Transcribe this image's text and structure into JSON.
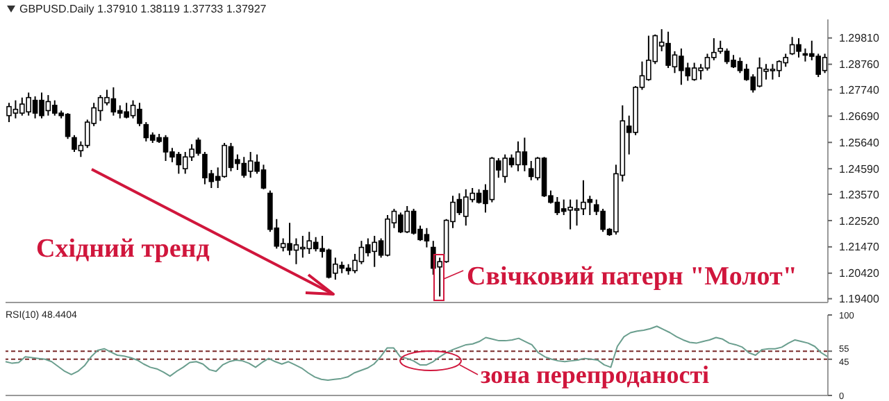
{
  "chart_data": [
    {
      "type": "candlestick",
      "title": "GBPUSD.Daily 1.37910 1.38119 1.37733 1.37927",
      "categories": [
        null,
        null,
        null,
        null,
        null,
        null,
        null,
        null,
        null,
        null,
        null,
        null,
        null,
        null,
        null,
        null,
        null,
        null,
        null,
        null,
        null,
        null,
        null,
        null,
        null,
        null,
        null,
        null,
        null,
        null,
        null,
        null,
        null,
        null,
        null,
        null,
        null,
        null,
        null,
        null,
        null,
        null,
        null,
        null,
        null,
        null,
        null,
        null,
        null,
        null,
        null,
        null,
        null,
        null,
        null,
        null,
        null,
        null,
        null,
        null,
        null,
        null,
        null,
        null,
        null,
        null,
        null,
        null,
        null,
        null,
        null,
        null,
        null,
        null,
        null,
        null,
        null,
        null,
        null,
        null,
        null,
        null,
        null,
        null,
        null,
        null,
        null,
        null,
        null,
        null,
        null,
        null,
        null,
        null,
        null,
        null,
        null,
        null,
        null,
        null,
        null,
        null,
        null,
        null,
        null,
        null,
        null,
        null,
        null,
        null,
        null,
        null,
        null,
        null,
        null,
        null,
        null,
        null,
        null,
        null,
        null,
        null,
        null,
        null,
        null,
        null
      ],
      "ohlc": [
        [
          1.2671,
          1.2722,
          1.2645,
          1.2707
        ],
        [
          1.2681,
          1.2732,
          1.266,
          1.2696
        ],
        [
          1.2681,
          1.2743,
          1.2671,
          1.2717
        ],
        [
          1.2686,
          1.2763,
          1.2671,
          1.2743
        ],
        [
          1.2732,
          1.2748,
          1.266,
          1.2681
        ],
        [
          1.2732,
          1.2763,
          1.266,
          1.2671
        ],
        [
          1.2691,
          1.2753,
          1.2671,
          1.2727
        ],
        [
          1.2712,
          1.2732,
          1.2671,
          1.2681
        ],
        [
          1.2681,
          1.2691,
          1.266,
          1.2671
        ],
        [
          1.2676,
          1.2681,
          1.2578,
          1.2588
        ],
        [
          1.2583,
          1.2593,
          1.2526,
          1.2537
        ],
        [
          1.2531,
          1.2568,
          1.2506,
          1.2552
        ],
        [
          1.2552,
          1.2655,
          1.2542,
          1.2645
        ],
        [
          1.264,
          1.2722,
          1.2629,
          1.2702
        ],
        [
          1.2691,
          1.2753,
          1.265,
          1.2743
        ],
        [
          1.2722,
          1.2774,
          1.2712,
          1.2743
        ],
        [
          1.2738,
          1.2784,
          1.2671,
          1.2686
        ],
        [
          1.2691,
          1.2712,
          1.266,
          1.2681
        ],
        [
          1.2686,
          1.2722,
          1.266,
          1.2665
        ],
        [
          1.2671,
          1.2732,
          1.266,
          1.2712
        ],
        [
          1.2696,
          1.2722,
          1.2629,
          1.264
        ],
        [
          1.2635,
          1.2645,
          1.2568,
          1.2583
        ],
        [
          1.2593,
          1.2604,
          1.2562,
          1.2573
        ],
        [
          1.2583,
          1.2598,
          1.2562,
          1.2568
        ],
        [
          1.2583,
          1.2593,
          1.249,
          1.2526
        ],
        [
          1.2526,
          1.2542,
          1.2485,
          1.2506
        ],
        [
          1.2516,
          1.2526,
          1.2439,
          1.2475
        ],
        [
          1.2459,
          1.2526,
          1.2439,
          1.2506
        ],
        [
          1.2506,
          1.2557,
          1.249,
          1.2537
        ],
        [
          1.2573,
          1.2583,
          1.2511,
          1.2521
        ],
        [
          1.2516,
          1.2526,
          1.2397,
          1.2423
        ],
        [
          1.2439,
          1.2454,
          1.2382,
          1.2408
        ],
        [
          1.2428,
          1.2464,
          1.2382,
          1.2413
        ],
        [
          1.2428,
          1.2562,
          1.2423,
          1.2552
        ],
        [
          1.2547,
          1.2562,
          1.2449,
          1.2464
        ],
        [
          1.2495,
          1.2516,
          1.2454,
          1.248
        ],
        [
          1.248,
          1.2506,
          1.2423,
          1.2433
        ],
        [
          1.2449,
          1.2526,
          1.2423,
          1.249
        ],
        [
          1.2485,
          1.2516,
          1.2439,
          1.2449
        ],
        [
          1.2454,
          1.2475,
          1.2377,
          1.2382
        ],
        [
          1.2361,
          1.2372,
          1.2207,
          1.2217
        ],
        [
          1.2222,
          1.2258,
          1.214,
          1.215
        ],
        [
          1.2145,
          1.2181,
          1.2129,
          1.216
        ],
        [
          1.216,
          1.2243,
          1.2114,
          1.2134
        ],
        [
          1.2134,
          1.2181,
          1.2078,
          1.2155
        ],
        [
          1.214,
          1.2191,
          1.2104,
          1.2145
        ],
        [
          1.214,
          1.2207,
          1.2119,
          1.2171
        ],
        [
          1.2165,
          1.2186,
          1.2129,
          1.214
        ],
        [
          1.214,
          1.2191,
          1.2104,
          1.2129
        ],
        [
          1.2134,
          1.214,
          1.2021,
          1.2026
        ],
        [
          1.2042,
          1.2104,
          1.2016,
          1.2078
        ],
        [
          1.2073,
          1.2088,
          1.2042,
          1.2062
        ],
        [
          1.2062,
          1.2078,
          1.2036,
          1.2052
        ],
        [
          1.2052,
          1.2119,
          1.2042,
          1.2093
        ],
        [
          1.2088,
          1.2171,
          1.2078,
          1.2145
        ],
        [
          1.2155,
          1.2181,
          1.2109,
          1.2124
        ],
        [
          1.2129,
          1.2191,
          1.2067,
          1.2165
        ],
        [
          1.2171,
          1.2181,
          1.2104,
          1.2114
        ],
        [
          1.2114,
          1.2274,
          1.2109,
          1.2258
        ],
        [
          1.2243,
          1.2299,
          1.2222,
          1.2289
        ],
        [
          1.2274,
          1.2284,
          1.2202,
          1.2207
        ],
        [
          1.2207,
          1.231,
          1.2202,
          1.2289
        ],
        [
          1.2289,
          1.2299,
          1.2196,
          1.2202
        ],
        [
          1.2217,
          1.2232,
          1.2171,
          1.2176
        ],
        [
          1.2196,
          1.2222,
          1.2145,
          1.2171
        ],
        [
          1.2145,
          1.2171,
          1.2036,
          1.2062
        ],
        [
          1.2067,
          1.2104,
          1.1949,
          1.2088
        ],
        [
          1.2088,
          1.2258,
          1.2083,
          1.2253
        ],
        [
          1.2248,
          1.2351,
          1.2222,
          1.2325
        ],
        [
          1.2336,
          1.2361,
          1.2274,
          1.2284
        ],
        [
          1.2269,
          1.2377,
          1.2232,
          1.2346
        ],
        [
          1.2336,
          1.2382,
          1.2325,
          1.2361
        ],
        [
          1.2361,
          1.2377,
          1.232,
          1.2325
        ],
        [
          1.2372,
          1.2397,
          1.2284,
          1.232
        ],
        [
          1.2336,
          1.2506,
          1.2325,
          1.2501
        ],
        [
          1.249,
          1.2501,
          1.2423,
          1.2454
        ],
        [
          1.2428,
          1.2516,
          1.2403,
          1.2501
        ],
        [
          1.2501,
          1.2516,
          1.2464,
          1.2475
        ],
        [
          1.2475,
          1.2568,
          1.2449,
          1.2526
        ],
        [
          1.2526,
          1.2583,
          1.2449,
          1.2475
        ],
        [
          1.2459,
          1.249,
          1.2413,
          1.2428
        ],
        [
          1.2423,
          1.2506,
          1.2413,
          1.2501
        ],
        [
          1.2501,
          1.2506,
          1.2346,
          1.2351
        ],
        [
          1.2351,
          1.2372,
          1.232,
          1.2325
        ],
        [
          1.2325,
          1.2346,
          1.2274,
          1.2284
        ],
        [
          1.2299,
          1.2336,
          1.2274,
          1.2289
        ],
        [
          1.2294,
          1.2336,
          1.2217,
          1.2305
        ],
        [
          1.2299,
          1.2336,
          1.2232,
          1.2299
        ],
        [
          1.2299,
          1.2413,
          1.2274,
          1.2325
        ],
        [
          1.2336,
          1.2351,
          1.2274,
          1.2325
        ],
        [
          1.2315,
          1.2336,
          1.2274,
          1.2289
        ],
        [
          1.2289,
          1.2299,
          1.2207,
          1.2217
        ],
        [
          1.2217,
          1.2222,
          1.2191,
          1.2196
        ],
        [
          1.2207,
          1.2475,
          1.2196,
          1.2439
        ],
        [
          1.2433,
          1.2712,
          1.2408,
          1.265
        ],
        [
          1.2629,
          1.2671,
          1.2516,
          1.2604
        ],
        [
          1.2604,
          1.2789,
          1.2593,
          1.2784
        ],
        [
          1.2784,
          1.2887,
          1.2774,
          1.283
        ],
        [
          1.2815,
          1.299,
          1.281,
          1.2892
        ],
        [
          1.2887,
          1.2995,
          1.2877,
          1.299
        ],
        [
          1.2949,
          1.3016,
          1.2928,
          1.2964
        ],
        [
          1.2959,
          1.3006,
          1.2861,
          1.2872
        ],
        [
          1.2866,
          1.2928,
          1.2841,
          1.2913
        ],
        [
          1.2908,
          1.2939,
          1.2794,
          1.2851
        ],
        [
          1.2861,
          1.2882,
          1.281,
          1.283
        ],
        [
          1.2815,
          1.2882,
          1.281,
          1.2861
        ],
        [
          1.2851,
          1.2877,
          1.2815,
          1.2861
        ],
        [
          1.2861,
          1.2918,
          1.2851,
          1.2903
        ],
        [
          1.2903,
          1.298,
          1.2892,
          1.2923
        ],
        [
          1.2928,
          1.297,
          1.2918,
          1.2939
        ],
        [
          1.2928,
          1.2939,
          1.2877,
          1.2887
        ],
        [
          1.2892,
          1.2913,
          1.2861,
          1.2866
        ],
        [
          1.2887,
          1.2903,
          1.2841,
          1.2851
        ],
        [
          1.2856,
          1.2877,
          1.281,
          1.2815
        ],
        [
          1.2825,
          1.2836,
          1.2763,
          1.2774
        ],
        [
          1.2789,
          1.2903,
          1.2784,
          1.2861
        ],
        [
          1.2848,
          1.2877,
          1.2815,
          1.2856
        ],
        [
          1.2851,
          1.2877,
          1.2815,
          1.2856
        ],
        [
          1.2851,
          1.2892,
          1.2825,
          1.2887
        ],
        [
          1.2882,
          1.2918,
          1.2866,
          1.2903
        ],
        [
          1.2918,
          1.2985,
          1.2913,
          1.2954
        ],
        [
          1.2954,
          1.298,
          1.2903,
          1.2928
        ],
        [
          1.2918,
          1.2939,
          1.2887,
          1.2913
        ],
        [
          1.2918,
          1.297,
          1.2892,
          1.2908
        ],
        [
          1.2908,
          1.2918,
          1.2825,
          1.2836
        ],
        [
          1.2851,
          1.2918,
          1.2841,
          1.2903
        ]
      ],
      "ylim": [
        1.1925,
        1.3055
      ],
      "yticks": [
        {
          "value": 1.194,
          "label": "1.19400"
        },
        {
          "value": 1.2042,
          "label": "1.20420"
        },
        {
          "value": 1.2147,
          "label": "1.21470"
        },
        {
          "value": 1.2252,
          "label": "1.22520"
        },
        {
          "value": 1.2357,
          "label": "1.23570"
        },
        {
          "value": 1.2459,
          "label": "1.24590"
        },
        {
          "value": 1.2564,
          "label": "1.25640"
        },
        {
          "value": 1.2669,
          "label": "1.26690"
        },
        {
          "value": 1.2774,
          "label": "1.27740"
        },
        {
          "value": 1.2876,
          "label": "1.28760"
        },
        {
          "value": 1.2981,
          "label": "1.29810"
        }
      ],
      "tick_labels": "y",
      "annotations": [
        "Східний тренд",
        "Свічковий патерн \"Молот\""
      ]
    },
    {
      "type": "line",
      "title": "RSI(10) 48.4404",
      "categories": [
        null,
        null,
        null,
        null,
        null,
        null,
        null,
        null,
        null,
        null,
        null,
        null,
        null,
        null,
        null,
        null,
        null,
        null,
        null,
        null,
        null,
        null,
        null,
        null,
        null,
        null,
        null,
        null,
        null,
        null,
        null,
        null,
        null,
        null,
        null,
        null,
        null,
        null,
        null,
        null,
        null,
        null,
        null,
        null,
        null,
        null,
        null,
        null,
        null,
        null,
        null,
        null,
        null,
        null,
        null,
        null,
        null,
        null,
        null,
        null,
        null,
        null,
        null,
        null,
        null,
        null,
        null,
        null,
        null,
        null,
        null,
        null,
        null,
        null,
        null,
        null,
        null,
        null,
        null,
        null,
        null,
        null,
        null,
        null,
        null,
        null,
        null,
        null,
        null,
        null,
        null,
        null,
        null,
        null,
        null,
        null,
        null,
        null,
        null,
        null,
        null,
        null,
        null,
        null,
        null,
        null,
        null,
        null,
        null,
        null,
        null,
        null,
        null,
        null,
        null,
        null,
        null,
        null,
        null,
        null,
        null,
        null,
        null,
        null,
        null,
        null
      ],
      "series": [
        {
          "color": "#6a9e8e",
          "values": [
            42,
            40,
            41,
            48,
            47,
            46,
            45,
            42,
            36,
            30,
            26,
            30,
            37,
            48,
            56,
            58,
            54,
            50,
            49,
            47,
            44,
            39,
            35,
            33,
            29,
            24,
            30,
            35,
            41,
            42,
            39,
            32,
            30,
            38,
            42,
            44,
            43,
            40,
            35,
            41,
            46,
            42,
            39,
            42,
            38,
            34,
            28,
            23,
            20,
            19,
            20,
            21,
            23,
            28,
            31,
            34,
            39,
            48,
            59,
            59,
            48,
            46,
            43,
            38,
            38,
            42,
            48,
            53,
            57,
            60,
            63,
            64,
            67,
            72,
            70,
            68,
            68,
            69,
            71,
            67,
            63,
            53,
            48,
            45,
            43,
            42,
            43,
            44,
            46,
            45,
            44,
            38,
            35,
            61,
            73,
            78,
            80,
            81,
            83,
            86,
            82,
            78,
            73,
            69,
            66,
            65,
            67,
            69,
            72,
            70,
            65,
            63,
            60,
            53,
            50,
            57,
            58,
            58,
            60,
            65,
            69,
            67,
            65,
            61,
            53,
            48
          ]
        }
      ],
      "ylim": [
        0,
        100
      ],
      "yticks": [
        0,
        45,
        55,
        100
      ],
      "ref_lines": [
        {
          "axis": "y",
          "value": 45,
          "line_style": "dashed",
          "color": "#7a2a2a"
        },
        {
          "axis": "y",
          "value": 55,
          "line_style": "dashed",
          "color": "#7a2a2a"
        }
      ],
      "tick_labels": "y",
      "annotations": [
        "зона перепроданості"
      ]
    }
  ]
}
